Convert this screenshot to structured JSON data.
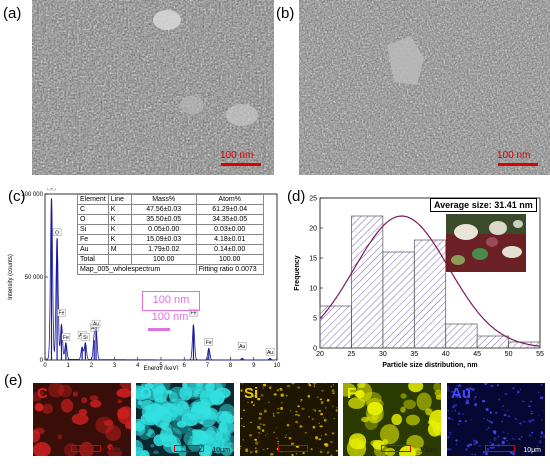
{
  "panels": {
    "a": "(a)",
    "b": "(b)",
    "c": "(c)",
    "d": "(d)",
    "e": "(e)"
  },
  "sem": {
    "scale_label": "100 nm"
  },
  "eds_table": {
    "headers": [
      "Element",
      "Line",
      "Mass%",
      "Atom%"
    ],
    "rows": [
      [
        "C",
        "K",
        "47.56±0.03",
        "61.29±0.04"
      ],
      [
        "O",
        "K",
        "35.50±0.05",
        "34.35±0.05"
      ],
      [
        "Si",
        "K",
        "0.05±0.00",
        "0.03±0.00"
      ],
      [
        "Fe",
        "K",
        "15.09±0.03",
        "4.18±0.01"
      ],
      [
        "Au",
        "M",
        "1.79±0.02",
        "0.14±0.00"
      ],
      [
        "Total",
        "",
        "100.00",
        "100.00"
      ]
    ],
    "footer_left": "Map_005_wholespectrum",
    "footer_right": "Fitting ratio 0.0073"
  },
  "eds_overlay": {
    "scale_top": "100 nm",
    "scale_bottom": "100 nm"
  },
  "chart_data": [
    {
      "type": "line",
      "xlabel": "Energy (keV)",
      "ylabel": "Intensity (counts)",
      "xlim": [
        0,
        10
      ],
      "ylim": [
        0,
        100000
      ],
      "x_ticks": [
        "0",
        "1",
        "2",
        "3",
        "4",
        "5",
        "6",
        "7",
        "8",
        "9",
        "10"
      ],
      "y_ticks": [
        "0",
        "50 000",
        "100 000"
      ],
      "peaks": [
        {
          "label": "C",
          "x": 0.28,
          "y": 97000
        },
        {
          "label": "O",
          "x": 0.52,
          "y": 73000
        },
        {
          "label": "Fe",
          "x": 0.71,
          "y": 21000
        },
        {
          "label": "Fe",
          "x": 0.9,
          "y": 10000
        },
        {
          "label": "Au",
          "x": 1.6,
          "y": 7500
        },
        {
          "label": "Si",
          "x": 1.74,
          "y": 10000
        },
        {
          "label": "Au",
          "x": 2.12,
          "y": 12000
        },
        {
          "label": "Au",
          "x": 2.2,
          "y": 18000
        },
        {
          "label": "Fe",
          "x": 6.4,
          "y": 21000
        },
        {
          "label": "Fe",
          "x": 7.06,
          "y": 7000
        },
        {
          "label": "Au",
          "x": 8.5,
          "y": 1000
        },
        {
          "label": "Au",
          "x": 9.7,
          "y": 1000
        }
      ]
    },
    {
      "type": "bar",
      "xlabel": "Particle size distribution, nm",
      "ylabel": "Frequency",
      "annotation": "Average size: 31.41 nm",
      "xlim": [
        20,
        55
      ],
      "ylim": [
        0,
        25
      ],
      "x_ticks": [
        "20",
        "25",
        "30",
        "35",
        "40",
        "45",
        "50",
        "55"
      ],
      "y_ticks": [
        "0",
        "5",
        "10",
        "15",
        "20",
        "25"
      ],
      "bins": [
        {
          "from": 20,
          "to": 25,
          "value": 7
        },
        {
          "from": 25,
          "to": 30,
          "value": 22
        },
        {
          "from": 30,
          "to": 35,
          "value": 16
        },
        {
          "from": 35,
          "to": 40,
          "value": 18
        },
        {
          "from": 40,
          "to": 45,
          "value": 4
        },
        {
          "from": 45,
          "to": 50,
          "value": 2
        },
        {
          "from": 50,
          "to": 55,
          "value": 1
        }
      ],
      "fit_curve": {
        "type": "gaussian",
        "peak_x": 33,
        "peak_y": 22,
        "sigma": 7.5
      }
    }
  ],
  "maps": [
    {
      "label": "C",
      "color": "#d42020",
      "bg": "#3a0e08",
      "scale": "10μm"
    },
    {
      "label": "O",
      "color": "#32e0e0",
      "bg": "#0a2830",
      "scale": "10μm"
    },
    {
      "label": "Si",
      "color": "#e8c800",
      "bg": "#1e1600",
      "scale": "10μm"
    },
    {
      "label": "Fe",
      "color": "#e8f000",
      "bg": "#2a3a00",
      "scale": "10μm"
    },
    {
      "label": "Au",
      "color": "#4848ff",
      "bg": "#070733",
      "scale": "10μm"
    }
  ]
}
